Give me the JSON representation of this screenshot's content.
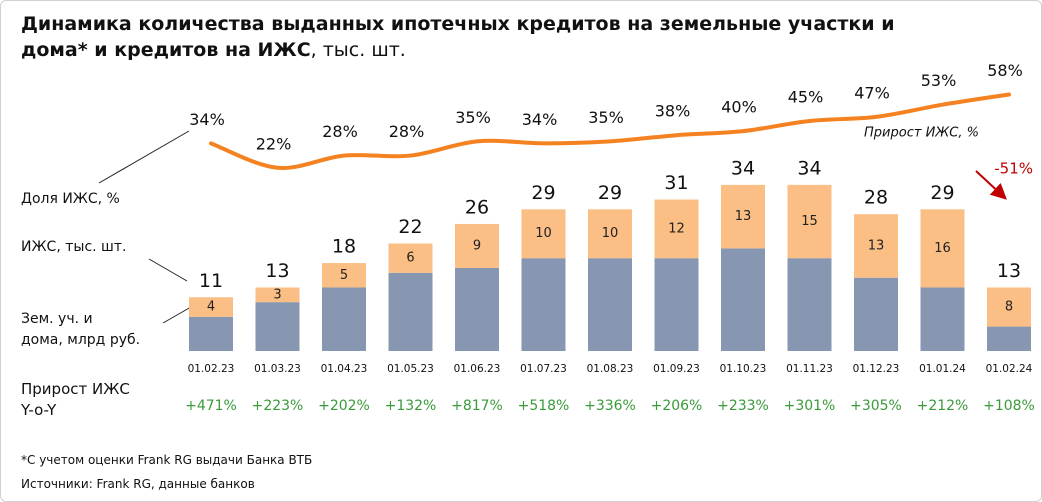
{
  "chart_data": {
    "type": "bar",
    "title": "Динамика количества выданных ипотечных кредитов на земельные участки и\nдома* и кредитов на ИЖС",
    "title_unit": ", тыс. шт.",
    "categories": [
      "01.02.23",
      "01.03.23",
      "01.04.23",
      "01.05.23",
      "01.06.23",
      "01.07.23",
      "01.08.23",
      "01.09.23",
      "01.10.23",
      "01.11.23",
      "01.12.23",
      "01.01.24",
      "01.02.24"
    ],
    "stacked": true,
    "ylim": [
      0,
      70
    ],
    "y2lim": [
      -68,
      100
    ],
    "series": [
      {
        "name": "Зем. уч. и\nдома, млрд руб.",
        "color": "#8797b1",
        "values": [
          7,
          10,
          13,
          16,
          17,
          19,
          19,
          19,
          21,
          19,
          15,
          13,
          5
        ]
      },
      {
        "name": "ИЖС, тыс. шт.",
        "color": "#fbbe84",
        "values": [
          4,
          3,
          5,
          6,
          9,
          10,
          10,
          12,
          13,
          15,
          13,
          16,
          8
        ]
      },
      {
        "name": "Доля ИЖС, %",
        "type": "line",
        "axis": "y2",
        "color": "#f58220",
        "values": [
          34,
          22,
          28,
          28,
          35,
          34,
          35,
          38,
          40,
          45,
          47,
          53,
          58
        ],
        "value_labels": [
          "34%",
          "22%",
          "28%",
          "28%",
          "35%",
          "34%",
          "35%",
          "38%",
          "40%",
          "45%",
          "47%",
          "53%",
          "58%"
        ]
      }
    ],
    "total_labels": [
      11,
      13,
      18,
      22,
      26,
      29,
      29,
      31,
      34,
      34,
      28,
      29,
      13
    ],
    "yoy": {
      "label": "Прирост ИЖС\nY-o-Y",
      "color": "#3a9a3a",
      "values": [
        471,
        223,
        202,
        132,
        817,
        518,
        336,
        206,
        233,
        301,
        305,
        212,
        108
      ],
      "value_labels": [
        "+471%",
        "+223%",
        "+202%",
        "+132%",
        "+817%",
        "+518%",
        "+336%",
        "+206%",
        "+233%",
        "+301%",
        "+305%",
        "+212%",
        "+108%"
      ]
    },
    "annotation": {
      "text": "Прирост ИЖС, %",
      "value": -51,
      "value_label": "-51%",
      "color": "#c00000"
    },
    "footnotes": [
      "*С учетом оценки Frank RG выдачи Банка ВТБ",
      "Источники: Frank RG, данные банков"
    ]
  }
}
